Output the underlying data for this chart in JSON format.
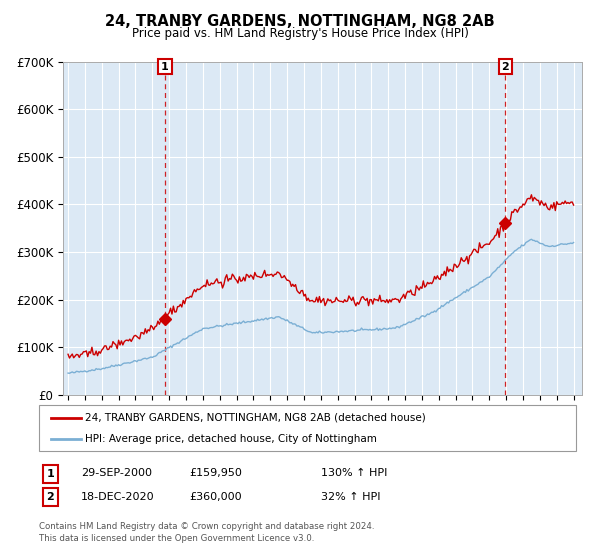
{
  "title": "24, TRANBY GARDENS, NOTTINGHAM, NG8 2AB",
  "subtitle": "Price paid vs. HM Land Registry's House Price Index (HPI)",
  "background_color": "#ffffff",
  "plot_bg_color": "#dce9f5",
  "red_line_color": "#cc0000",
  "blue_line_color": "#7bafd4",
  "marker_color": "#cc0000",
  "dashed_color": "#cc0000",
  "legend_label_red": "24, TRANBY GARDENS, NOTTINGHAM, NG8 2AB (detached house)",
  "legend_label_blue": "HPI: Average price, detached house, City of Nottingham",
  "purchase1_date": "29-SEP-2000",
  "purchase1_price": 159950,
  "purchase1_hpi": "130% ↑ HPI",
  "purchase2_date": "18-DEC-2020",
  "purchase2_price": 360000,
  "purchase2_hpi": "32% ↑ HPI",
  "footer": "Contains HM Land Registry data © Crown copyright and database right 2024.\nThis data is licensed under the Open Government Licence v3.0.",
  "ylim": [
    0,
    700000
  ],
  "yticks": [
    0,
    100000,
    200000,
    300000,
    400000,
    500000,
    600000,
    700000
  ],
  "ytick_labels": [
    "£0",
    "£100K",
    "£200K",
    "£300K",
    "£400K",
    "£500K",
    "£600K",
    "£700K"
  ],
  "t1": 2000.75,
  "t2": 2020.96
}
